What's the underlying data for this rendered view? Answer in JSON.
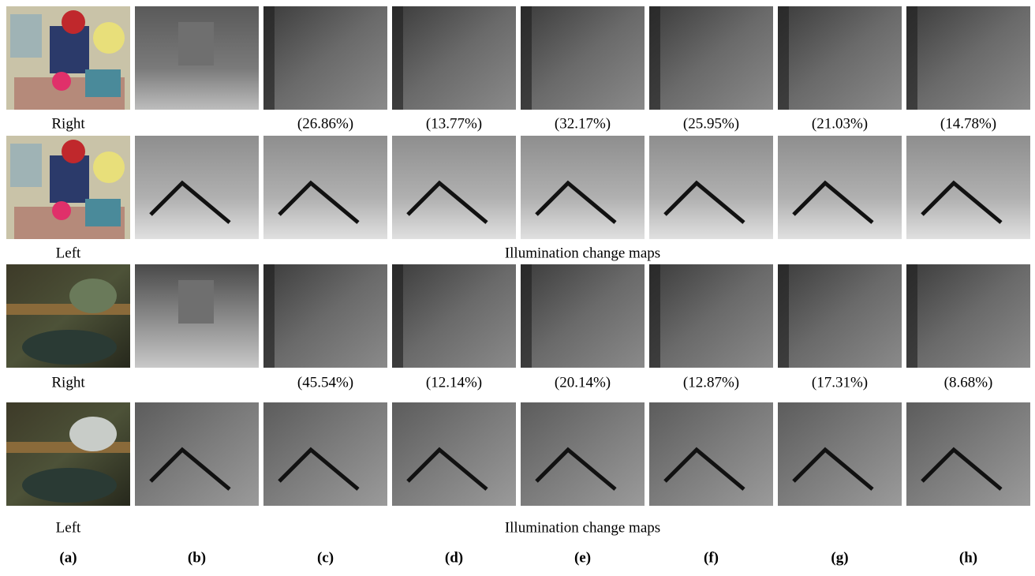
{
  "groups": [
    {
      "right_label": "Right",
      "error_rates": [
        "(26.86%)",
        "(13.77%)",
        "(32.17%)",
        "(25.95%)",
        "(21.03%)",
        "(14.78%)"
      ],
      "left_label": "Left",
      "caption": "Illumination change maps"
    },
    {
      "right_label": "Right",
      "error_rates": [
        "(45.54%)",
        "(12.14%)",
        "(20.14%)",
        "(12.87%)",
        "(17.31%)",
        "(8.68%)"
      ],
      "left_label": "Left",
      "caption": "Illumination change maps"
    }
  ],
  "column_labels": [
    "(a)",
    "(b)",
    "(c)",
    "(d)",
    "(e)",
    "(f)",
    "(g)",
    "(h)"
  ]
}
